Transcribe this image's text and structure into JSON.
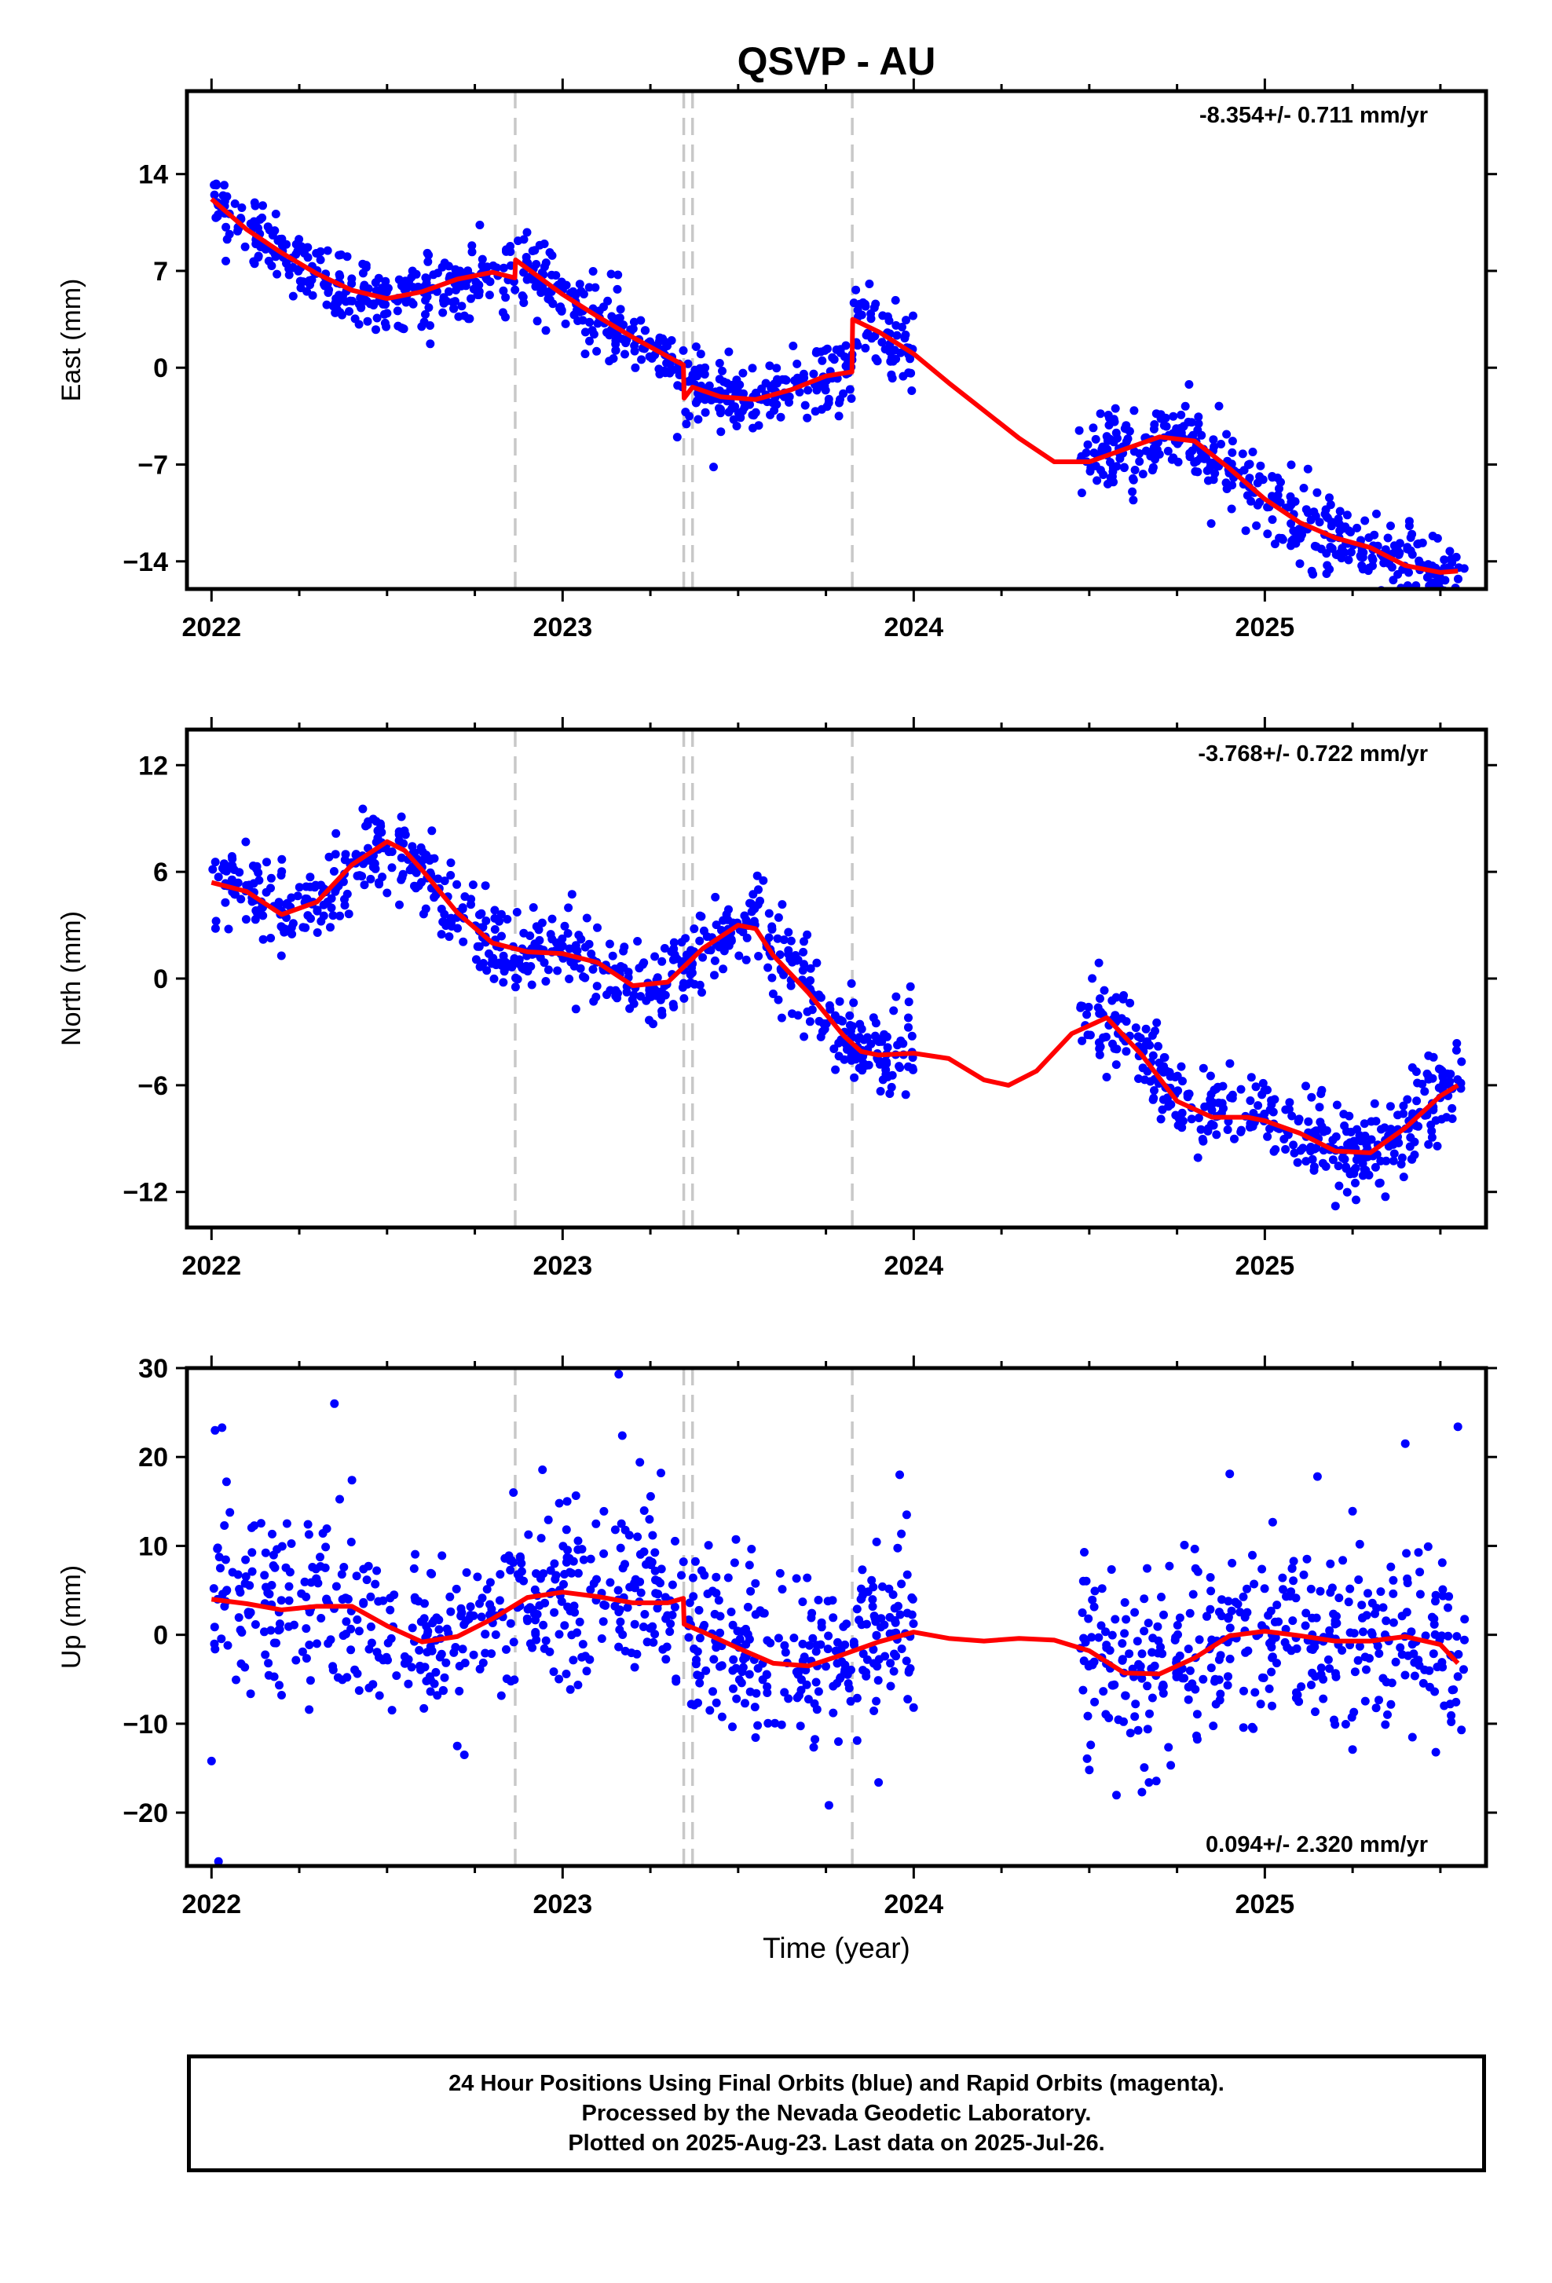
{
  "title": "QSVP - AU",
  "xlabel": "Time (year)",
  "footer": {
    "line1": "24 Hour Positions Using Final Orbits (blue) and Rapid Orbits (magenta).",
    "line2": "Processed by the Nevada Geodetic Laboratory.",
    "line3": "Plotted on 2025-Aug-23. Last data on 2025-Jul-26."
  },
  "colors": {
    "points": "#0000ff",
    "model": "#ff0000",
    "events": "#c8c8c8",
    "frame": "#000000"
  },
  "chart_data": [
    {
      "type": "scatter",
      "id": "east",
      "ylabel": "East (mm)",
      "rate_label": "-8.354+/- 0.711 mm/yr",
      "rate_position": "top-right",
      "xlim": [
        2021.93,
        2025.63
      ],
      "ylim": [
        -16.0,
        20.0
      ],
      "yticks": [
        14,
        7,
        0,
        -7,
        -14
      ],
      "xticks": [
        2022,
        2023,
        2024,
        2025
      ],
      "events": [
        2022.865,
        2023.345,
        2023.37,
        2023.825
      ],
      "series": [
        {
          "role": "model",
          "x": [
            2022.0,
            2022.1,
            2022.2,
            2022.3,
            2022.4,
            2022.5,
            2022.6,
            2022.7,
            2022.8,
            2022.864,
            2022.866,
            2023.0,
            2023.1,
            2023.2,
            2023.3,
            2023.344,
            2023.346,
            2023.37,
            2023.45,
            2023.55,
            2023.65,
            2023.75,
            2023.824,
            2023.826,
            2023.9,
            2024.0,
            2024.1,
            2024.2,
            2024.3,
            2024.4,
            2024.5,
            2024.6,
            2024.7,
            2024.8,
            2024.9,
            2025.0,
            2025.1,
            2025.2,
            2025.3,
            2025.4,
            2025.5,
            2025.55
          ],
          "y": [
            12.2,
            10.0,
            8.3,
            6.8,
            5.6,
            5.0,
            5.5,
            6.4,
            6.9,
            6.5,
            7.8,
            5.3,
            3.7,
            2.2,
            0.8,
            0.2,
            -2.2,
            -1.4,
            -2.1,
            -2.3,
            -1.6,
            -0.6,
            -0.3,
            3.5,
            2.6,
            1.0,
            -1.1,
            -3.1,
            -5.1,
            -6.8,
            -6.8,
            -5.9,
            -5.0,
            -5.3,
            -7.3,
            -9.5,
            -11.2,
            -12.3,
            -13.0,
            -14.3,
            -14.8,
            -14.7
          ]
        },
        {
          "role": "observations",
          "segments": [
            [
              2022.0,
              2024.0
            ],
            [
              2024.47,
              2025.57
            ]
          ],
          "scatter_sd": 1.3,
          "count": 1100
        }
      ]
    },
    {
      "type": "scatter",
      "id": "north",
      "ylabel": "North (mm)",
      "rate_label": "-3.768+/- 0.722 mm/yr",
      "rate_position": "top-right",
      "xlim": [
        2021.93,
        2025.63
      ],
      "ylim": [
        -14.0,
        14.0
      ],
      "yticks": [
        12,
        6,
        0,
        -6,
        -12
      ],
      "xticks": [
        2022,
        2023,
        2024,
        2025
      ],
      "events": [
        2022.865,
        2023.345,
        2023.37,
        2023.825
      ],
      "series": [
        {
          "role": "model",
          "x": [
            2022.0,
            2022.1,
            2022.2,
            2022.3,
            2022.4,
            2022.5,
            2022.55,
            2022.6,
            2022.7,
            2022.8,
            2022.9,
            2023.0,
            2023.1,
            2023.2,
            2023.3,
            2023.4,
            2023.5,
            2023.55,
            2023.6,
            2023.7,
            2023.8,
            2023.85,
            2023.9,
            2024.0,
            2024.1,
            2024.2,
            2024.27,
            2024.35,
            2024.45,
            2024.55,
            2024.65,
            2024.75,
            2024.85,
            2024.95,
            2025.0,
            2025.1,
            2025.2,
            2025.3,
            2025.4,
            2025.5,
            2025.55
          ],
          "y": [
            5.4,
            4.9,
            3.6,
            4.3,
            6.4,
            7.7,
            7.2,
            6.1,
            3.7,
            2.0,
            1.5,
            1.4,
            0.9,
            -0.4,
            -0.2,
            1.7,
            3.0,
            2.8,
            1.3,
            -0.8,
            -3.2,
            -4.1,
            -4.3,
            -4.2,
            -4.5,
            -5.7,
            -6.0,
            -5.2,
            -3.1,
            -2.2,
            -4.3,
            -6.9,
            -7.8,
            -7.8,
            -8.0,
            -8.7,
            -9.7,
            -9.8,
            -8.4,
            -6.6,
            -6.0
          ]
        },
        {
          "role": "observations",
          "segments": [
            [
              2022.0,
              2024.0
            ],
            [
              2024.47,
              2025.57
            ]
          ],
          "scatter_sd": 1.25,
          "count": 1100
        }
      ]
    },
    {
      "type": "scatter",
      "id": "up",
      "ylabel": "Up (mm)",
      "rate_label": "0.094+/- 2.320 mm/yr",
      "rate_position": "bottom-right",
      "xlim": [
        2021.93,
        2025.63
      ],
      "ylim": [
        -26.0,
        30.0
      ],
      "yticks": [
        30,
        20,
        10,
        0,
        -10,
        -20
      ],
      "xticks": [
        2022,
        2023,
        2024,
        2025
      ],
      "events": [
        2022.865,
        2023.345,
        2023.37,
        2023.825
      ],
      "series": [
        {
          "role": "model",
          "x": [
            2022.0,
            2022.1,
            2022.2,
            2022.3,
            2022.4,
            2022.5,
            2022.6,
            2022.7,
            2022.8,
            2022.85,
            2022.9,
            2023.0,
            2023.1,
            2023.2,
            2023.3,
            2023.344,
            2023.346,
            2023.4,
            2023.5,
            2023.6,
            2023.7,
            2023.8,
            2023.9,
            2024.0,
            2024.1,
            2024.2,
            2024.3,
            2024.4,
            2024.5,
            2024.6,
            2024.7,
            2024.8,
            2024.9,
            2025.0,
            2025.1,
            2025.2,
            2025.3,
            2025.4,
            2025.5,
            2025.55
          ],
          "y": [
            4.0,
            3.5,
            2.8,
            3.2,
            3.2,
            1.0,
            -0.8,
            -0.2,
            1.8,
            3.0,
            4.2,
            4.8,
            4.3,
            3.6,
            3.6,
            4.1,
            1.2,
            0.3,
            -1.5,
            -3.2,
            -3.5,
            -2.2,
            -0.8,
            0.3,
            -0.4,
            -0.7,
            -0.4,
            -0.6,
            -1.8,
            -4.3,
            -4.4,
            -2.6,
            -0.1,
            0.4,
            -0.1,
            -0.7,
            -0.7,
            -0.2,
            -1.1,
            -3.2
          ]
        },
        {
          "role": "observations",
          "segments": [
            [
              2022.0,
              2024.0
            ],
            [
              2024.47,
              2025.57
            ]
          ],
          "scatter_sd": 4.8,
          "count": 1100,
          "outliers": [
            [
              2022.01,
              23.0
            ],
            [
              2022.03,
              23.3
            ],
            [
              2022.0,
              -14.2
            ],
            [
              2022.02,
              -25.5
            ],
            [
              2022.35,
              26.0
            ],
            [
              2022.4,
              17.4
            ],
            [
              2022.7,
              -12.5
            ],
            [
              2022.72,
              -13.5
            ],
            [
              2022.86,
              16.0
            ],
            [
              2023.16,
              29.3
            ],
            [
              2023.17,
              22.4
            ],
            [
              2023.22,
              19.4
            ],
            [
              2023.28,
              18.2
            ],
            [
              2023.9,
              -16.6
            ],
            [
              2023.96,
              18.0
            ],
            [
              2023.98,
              13.5
            ],
            [
              2024.5,
              -15.2
            ],
            [
              2024.65,
              -17.7
            ],
            [
              2024.67,
              -16.6
            ],
            [
              2024.9,
              18.1
            ],
            [
              2025.15,
              17.8
            ],
            [
              2025.25,
              13.9
            ],
            [
              2025.25,
              -12.9
            ],
            [
              2025.4,
              21.5
            ],
            [
              2025.55,
              23.4
            ],
            [
              2025.56,
              -10.7
            ]
          ]
        }
      ]
    }
  ]
}
